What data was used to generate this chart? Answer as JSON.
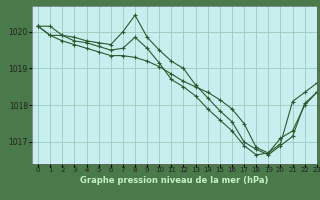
{
  "title": "Graphe pression niveau de la mer (hPa)",
  "plot_bg_color": "#c8eef0",
  "label_bg_color": "#4a7a4a",
  "grid_color": "#99ccbb",
  "line_color": "#2d5a2d",
  "xlim": [
    -0.5,
    23
  ],
  "ylim": [
    1016.4,
    1020.7
  ],
  "yticks": [
    1017,
    1018,
    1019,
    1020
  ],
  "xticks": [
    0,
    1,
    2,
    3,
    4,
    5,
    6,
    7,
    8,
    9,
    10,
    11,
    12,
    13,
    14,
    15,
    16,
    17,
    18,
    19,
    20,
    21,
    22,
    23
  ],
  "xlabel_color": "#c8f0c8",
  "series": [
    {
      "x": [
        0,
        1,
        2,
        3,
        4,
        5,
        6,
        7,
        8,
        9,
        10,
        11,
        12,
        13,
        14,
        15,
        16,
        17,
        18,
        19,
        20,
        21,
        22,
        23
      ],
      "y": [
        1020.15,
        1020.15,
        1019.9,
        1019.85,
        1019.75,
        1019.7,
        1019.65,
        1020.0,
        1020.45,
        1019.85,
        1019.5,
        1019.2,
        1019.0,
        1018.55,
        1018.2,
        1017.85,
        1017.55,
        1017.0,
        1016.8,
        1016.65,
        1016.9,
        1017.15,
        1018.05,
        1018.35
      ]
    },
    {
      "x": [
        0,
        1,
        2,
        3,
        4,
        5,
        6,
        7,
        8,
        9,
        10,
        11,
        12,
        13,
        14,
        15,
        16,
        17,
        18,
        19,
        20,
        21,
        22,
        23
      ],
      "y": [
        1020.15,
        1019.9,
        1019.9,
        1019.75,
        1019.7,
        1019.6,
        1019.5,
        1019.55,
        1019.85,
        1019.55,
        1019.15,
        1018.7,
        1018.5,
        1018.25,
        1017.9,
        1017.6,
        1017.3,
        1016.9,
        1016.65,
        1016.7,
        1017.1,
        1017.3,
        1018.0,
        1018.35
      ]
    },
    {
      "x": [
        0,
        1,
        2,
        3,
        4,
        5,
        6,
        7,
        8,
        9,
        10,
        11,
        12,
        13,
        14,
        15,
        16,
        17,
        18,
        19,
        20,
        21,
        22,
        23
      ],
      "y": [
        1020.15,
        1019.9,
        1019.75,
        1019.65,
        1019.55,
        1019.45,
        1019.35,
        1019.35,
        1019.3,
        1019.2,
        1019.05,
        1018.85,
        1018.65,
        1018.5,
        1018.35,
        1018.15,
        1017.9,
        1017.5,
        1016.85,
        1016.7,
        1016.95,
        1018.1,
        1018.35,
        1018.6
      ]
    }
  ]
}
